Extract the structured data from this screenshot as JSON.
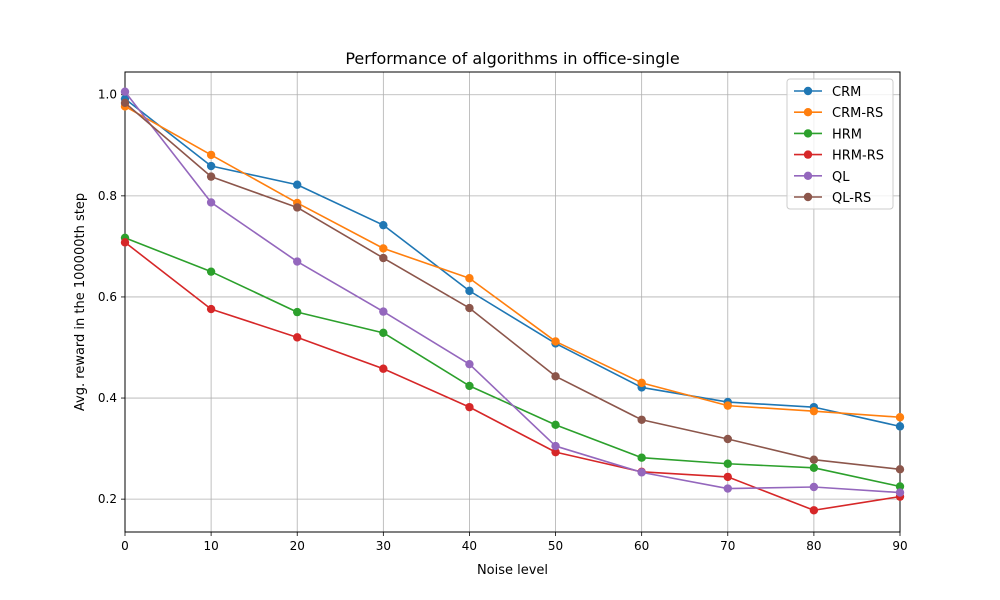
{
  "chart_data": {
    "type": "line",
    "title": "Performance of algorithms in office-single",
    "xlabel": "Noise level",
    "ylabel": "Avg. reward in the 100000th step",
    "xlim": [
      0,
      90
    ],
    "ylim": [
      0.135,
      1.045
    ],
    "grid": true,
    "legend_position": "top-right",
    "x": [
      0,
      10,
      20,
      30,
      40,
      50,
      60,
      70,
      80,
      90
    ],
    "x_ticks": [
      "0",
      "10",
      "20",
      "30",
      "40",
      "50",
      "60",
      "70",
      "80",
      "90"
    ],
    "y_ticks": [
      "0.2",
      "0.4",
      "0.6",
      "0.8",
      "1.0"
    ],
    "y_tick_values": [
      0.2,
      0.4,
      0.6,
      0.8,
      1.0
    ],
    "series": [
      {
        "name": "CRM",
        "color": "#1f77b4",
        "values": [
          0.992,
          0.859,
          0.822,
          0.742,
          0.612,
          0.508,
          0.421,
          0.392,
          0.382,
          0.344
        ]
      },
      {
        "name": "CRM-RS",
        "color": "#ff7f0e",
        "values": [
          0.977,
          0.881,
          0.786,
          0.696,
          0.637,
          0.512,
          0.43,
          0.385,
          0.374,
          0.362
        ]
      },
      {
        "name": "HRM",
        "color": "#2ca02c",
        "values": [
          0.717,
          0.65,
          0.57,
          0.529,
          0.424,
          0.347,
          0.282,
          0.27,
          0.262,
          0.225
        ]
      },
      {
        "name": "HRM-RS",
        "color": "#d62728",
        "values": [
          0.708,
          0.576,
          0.52,
          0.458,
          0.382,
          0.293,
          0.254,
          0.244,
          0.178,
          0.205
        ]
      },
      {
        "name": "QL",
        "color": "#9467bd",
        "values": [
          1.006,
          0.787,
          0.67,
          0.571,
          0.467,
          0.305,
          0.253,
          0.221,
          0.224,
          0.213
        ]
      },
      {
        "name": "QL-RS",
        "color": "#8c564b",
        "values": [
          0.984,
          0.838,
          0.777,
          0.677,
          0.578,
          0.443,
          0.357,
          0.319,
          0.278,
          0.259
        ]
      }
    ]
  }
}
